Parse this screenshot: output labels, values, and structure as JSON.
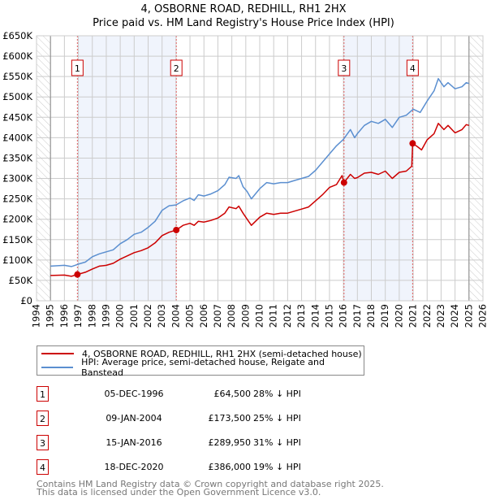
{
  "chart_data": {
    "type": "line",
    "title": "4, OSBORNE ROAD, REDHILL, RH1 2HX",
    "subtitle": "Price paid vs. HM Land Registry's House Price Index (HPI)",
    "xlim": [
      1994,
      2026
    ],
    "ylim": [
      0,
      650000
    ],
    "x_ticks": [
      "1994",
      "1995",
      "1996",
      "1997",
      "1998",
      "1999",
      "2000",
      "2001",
      "2002",
      "2003",
      "2004",
      "2005",
      "2006",
      "2007",
      "2008",
      "2009",
      "2010",
      "2011",
      "2012",
      "2013",
      "2014",
      "2015",
      "2016",
      "2017",
      "2018",
      "2019",
      "2020",
      "2021",
      "2022",
      "2023",
      "2024",
      "2025",
      "2026"
    ],
    "y_ticks": [
      {
        "v": 0,
        "label": "£0"
      },
      {
        "v": 50000,
        "label": "£50K"
      },
      {
        "v": 100000,
        "label": "£100K"
      },
      {
        "v": 150000,
        "label": "£150K"
      },
      {
        "v": 200000,
        "label": "£200K"
      },
      {
        "v": 250000,
        "label": "£250K"
      },
      {
        "v": 300000,
        "label": "£300K"
      },
      {
        "v": 350000,
        "label": "£350K"
      },
      {
        "v": 400000,
        "label": "£400K"
      },
      {
        "v": 450000,
        "label": "£450K"
      },
      {
        "v": 500000,
        "label": "£500K"
      },
      {
        "v": 550000,
        "label": "£550K"
      },
      {
        "v": 600000,
        "label": "£600K"
      },
      {
        "v": 650000,
        "label": "£650K"
      }
    ],
    "grid": true,
    "data_range": [
      1995,
      2025
    ],
    "shaded_periods": [
      [
        1996.93,
        2004.02
      ],
      [
        2016.04,
        2020.96
      ]
    ],
    "series": [
      {
        "name": "4, OSBORNE ROAD, REDHILL, RH1 2HX (semi-detached house)",
        "color": "#cc0000",
        "x": [
          1995,
          1996,
          1996.5,
          1996.93,
          1997.5,
          1998,
          1998.5,
          1999,
          1999.5,
          2000,
          2000.5,
          2001,
          2001.5,
          2002,
          2002.5,
          2003,
          2003.5,
          2004.02,
          2004.5,
          2005,
          2005.3,
          2005.6,
          2006,
          2006.5,
          2007,
          2007.5,
          2007.8,
          2008.3,
          2008.5,
          2008.8,
          2009.1,
          2009.4,
          2010,
          2010.5,
          2011,
          2011.5,
          2012,
          2012.5,
          2013,
          2013.5,
          2014,
          2014.5,
          2015,
          2015.5,
          2015.9,
          2016.04,
          2016.5,
          2016.8,
          2017,
          2017.5,
          2018,
          2018.5,
          2019,
          2019.5,
          2020,
          2020.5,
          2020.9,
          2020.96,
          2021.3,
          2021.6,
          2022,
          2022.5,
          2022.8,
          2023.2,
          2023.5,
          2024,
          2024.5,
          2024.8,
          2025
        ],
        "y": [
          62000,
          63000,
          60000,
          64500,
          70000,
          78000,
          85000,
          87000,
          92000,
          102000,
          110000,
          118000,
          123000,
          130000,
          142000,
          160000,
          168000,
          173500,
          185000,
          190000,
          185000,
          195000,
          193000,
          197000,
          203000,
          215000,
          230000,
          226000,
          232000,
          215000,
          200000,
          185000,
          205000,
          215000,
          212000,
          215000,
          215000,
          220000,
          225000,
          230000,
          245000,
          260000,
          278000,
          285000,
          307000,
          289950,
          310000,
          300000,
          302000,
          313000,
          315000,
          310000,
          318000,
          300000,
          315000,
          318000,
          330000,
          386000,
          378000,
          370000,
          395000,
          410000,
          435000,
          420000,
          430000,
          412000,
          420000,
          432000,
          430000
        ]
      },
      {
        "name": "HPI: Average price, semi-detached house, Reigate and Banstead",
        "color": "#5b8fd0",
        "x": [
          1995,
          1996,
          1996.5,
          1997,
          1997.5,
          1998,
          1998.5,
          1999,
          1999.5,
          2000,
          2000.5,
          2001,
          2001.5,
          2002,
          2002.5,
          2003,
          2003.5,
          2004,
          2004.5,
          2005,
          2005.3,
          2005.6,
          2006,
          2006.5,
          2007,
          2007.5,
          2007.8,
          2008.3,
          2008.5,
          2008.8,
          2009.1,
          2009.4,
          2010,
          2010.5,
          2011,
          2011.5,
          2012,
          2012.5,
          2013,
          2013.5,
          2014,
          2014.5,
          2015,
          2015.5,
          2016,
          2016.5,
          2016.8,
          2017,
          2017.5,
          2018,
          2018.5,
          2019,
          2019.5,
          2020,
          2020.5,
          2021,
          2021.5,
          2022,
          2022.5,
          2022.8,
          2023.2,
          2023.5,
          2024,
          2024.5,
          2024.8,
          2025
        ],
        "y": [
          85000,
          87000,
          84000,
          90000,
          95000,
          108000,
          115000,
          120000,
          125000,
          140000,
          150000,
          163000,
          168000,
          180000,
          195000,
          222000,
          233000,
          235000,
          245000,
          252000,
          246000,
          260000,
          257000,
          262000,
          270000,
          285000,
          303000,
          300000,
          307000,
          280000,
          268000,
          250000,
          275000,
          290000,
          287000,
          290000,
          290000,
          295000,
          300000,
          305000,
          320000,
          340000,
          360000,
          380000,
          396000,
          420000,
          400000,
          410000,
          430000,
          440000,
          435000,
          445000,
          425000,
          450000,
          455000,
          470000,
          462000,
          490000,
          515000,
          545000,
          525000,
          535000,
          520000,
          525000,
          535000,
          533000
        ]
      }
    ],
    "sales": [
      {
        "label": "1",
        "x": 1996.93,
        "y": 64500
      },
      {
        "label": "2",
        "x": 2004.02,
        "y": 173500
      },
      {
        "label": "3",
        "x": 2016.04,
        "y": 289950
      },
      {
        "label": "4",
        "x": 2020.96,
        "y": 386000
      }
    ]
  },
  "header": {
    "title": "4, OSBORNE ROAD, REDHILL, RH1 2HX",
    "subtitle": "Price paid vs. HM Land Registry's House Price Index (HPI)"
  },
  "legend": {
    "property": "4, OSBORNE ROAD, REDHILL, RH1 2HX (semi-detached house)",
    "hpi": "HPI: Average price, semi-detached house, Reigate and Banstead"
  },
  "transactions": [
    {
      "num": "1",
      "date": "05-DEC-1996",
      "price": "£64,500",
      "hpi": "28% ↓ HPI"
    },
    {
      "num": "2",
      "date": "09-JAN-2004",
      "price": "£173,500",
      "hpi": "25% ↓ HPI"
    },
    {
      "num": "3",
      "date": "15-JAN-2016",
      "price": "£289,950",
      "hpi": "31% ↓ HPI"
    },
    {
      "num": "4",
      "date": "18-DEC-2020",
      "price": "£386,000",
      "hpi": "19% ↓ HPI"
    }
  ],
  "footer": {
    "line1": "Contains HM Land Registry data © Crown copyright and database right 2025.",
    "line2": "This data is licensed under the Open Government Licence v3.0."
  }
}
